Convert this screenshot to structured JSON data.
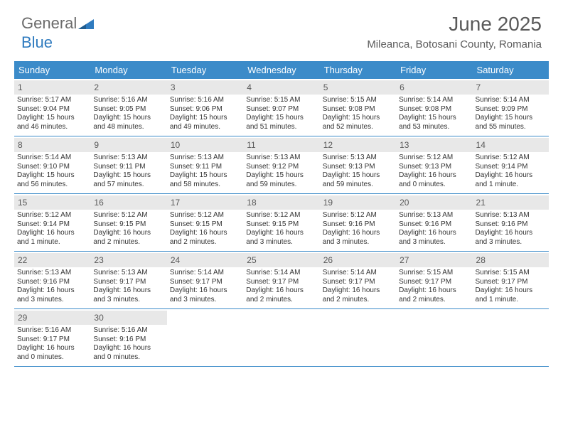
{
  "brand": {
    "part1": "General",
    "part2": "Blue"
  },
  "title": "June 2025",
  "location": "Mileanca, Botosani County, Romania",
  "colors": {
    "header_blue": "#3b8bc9",
    "daybar_gray": "#e8e8e8",
    "text": "#333333"
  },
  "day_names": [
    "Sunday",
    "Monday",
    "Tuesday",
    "Wednesday",
    "Thursday",
    "Friday",
    "Saturday"
  ],
  "weeks": [
    [
      {
        "n": "1",
        "sr": "5:17 AM",
        "ss": "9:04 PM",
        "dl": "15 hours and 46 minutes."
      },
      {
        "n": "2",
        "sr": "5:16 AM",
        "ss": "9:05 PM",
        "dl": "15 hours and 48 minutes."
      },
      {
        "n": "3",
        "sr": "5:16 AM",
        "ss": "9:06 PM",
        "dl": "15 hours and 49 minutes."
      },
      {
        "n": "4",
        "sr": "5:15 AM",
        "ss": "9:07 PM",
        "dl": "15 hours and 51 minutes."
      },
      {
        "n": "5",
        "sr": "5:15 AM",
        "ss": "9:08 PM",
        "dl": "15 hours and 52 minutes."
      },
      {
        "n": "6",
        "sr": "5:14 AM",
        "ss": "9:08 PM",
        "dl": "15 hours and 53 minutes."
      },
      {
        "n": "7",
        "sr": "5:14 AM",
        "ss": "9:09 PM",
        "dl": "15 hours and 55 minutes."
      }
    ],
    [
      {
        "n": "8",
        "sr": "5:14 AM",
        "ss": "9:10 PM",
        "dl": "15 hours and 56 minutes."
      },
      {
        "n": "9",
        "sr": "5:13 AM",
        "ss": "9:11 PM",
        "dl": "15 hours and 57 minutes."
      },
      {
        "n": "10",
        "sr": "5:13 AM",
        "ss": "9:11 PM",
        "dl": "15 hours and 58 minutes."
      },
      {
        "n": "11",
        "sr": "5:13 AM",
        "ss": "9:12 PM",
        "dl": "15 hours and 59 minutes."
      },
      {
        "n": "12",
        "sr": "5:13 AM",
        "ss": "9:13 PM",
        "dl": "15 hours and 59 minutes."
      },
      {
        "n": "13",
        "sr": "5:12 AM",
        "ss": "9:13 PM",
        "dl": "16 hours and 0 minutes."
      },
      {
        "n": "14",
        "sr": "5:12 AM",
        "ss": "9:14 PM",
        "dl": "16 hours and 1 minute."
      }
    ],
    [
      {
        "n": "15",
        "sr": "5:12 AM",
        "ss": "9:14 PM",
        "dl": "16 hours and 1 minute."
      },
      {
        "n": "16",
        "sr": "5:12 AM",
        "ss": "9:15 PM",
        "dl": "16 hours and 2 minutes."
      },
      {
        "n": "17",
        "sr": "5:12 AM",
        "ss": "9:15 PM",
        "dl": "16 hours and 2 minutes."
      },
      {
        "n": "18",
        "sr": "5:12 AM",
        "ss": "9:15 PM",
        "dl": "16 hours and 3 minutes."
      },
      {
        "n": "19",
        "sr": "5:12 AM",
        "ss": "9:16 PM",
        "dl": "16 hours and 3 minutes."
      },
      {
        "n": "20",
        "sr": "5:13 AM",
        "ss": "9:16 PM",
        "dl": "16 hours and 3 minutes."
      },
      {
        "n": "21",
        "sr": "5:13 AM",
        "ss": "9:16 PM",
        "dl": "16 hours and 3 minutes."
      }
    ],
    [
      {
        "n": "22",
        "sr": "5:13 AM",
        "ss": "9:16 PM",
        "dl": "16 hours and 3 minutes."
      },
      {
        "n": "23",
        "sr": "5:13 AM",
        "ss": "9:17 PM",
        "dl": "16 hours and 3 minutes."
      },
      {
        "n": "24",
        "sr": "5:14 AM",
        "ss": "9:17 PM",
        "dl": "16 hours and 3 minutes."
      },
      {
        "n": "25",
        "sr": "5:14 AM",
        "ss": "9:17 PM",
        "dl": "16 hours and 2 minutes."
      },
      {
        "n": "26",
        "sr": "5:14 AM",
        "ss": "9:17 PM",
        "dl": "16 hours and 2 minutes."
      },
      {
        "n": "27",
        "sr": "5:15 AM",
        "ss": "9:17 PM",
        "dl": "16 hours and 2 minutes."
      },
      {
        "n": "28",
        "sr": "5:15 AM",
        "ss": "9:17 PM",
        "dl": "16 hours and 1 minute."
      }
    ],
    [
      {
        "n": "29",
        "sr": "5:16 AM",
        "ss": "9:17 PM",
        "dl": "16 hours and 0 minutes."
      },
      {
        "n": "30",
        "sr": "5:16 AM",
        "ss": "9:16 PM",
        "dl": "16 hours and 0 minutes."
      },
      null,
      null,
      null,
      null,
      null
    ]
  ]
}
